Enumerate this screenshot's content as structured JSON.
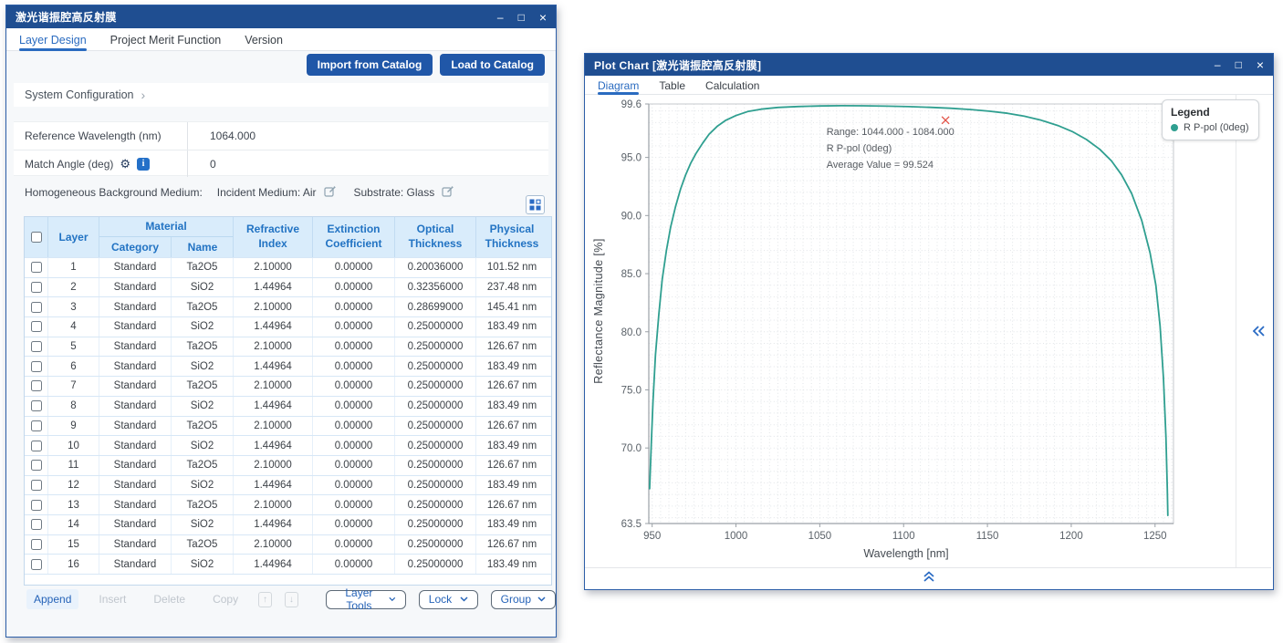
{
  "colors": {
    "titlebar": "#1f4e91",
    "accent": "#2a6bc0",
    "button_blue": "#2057a8",
    "table_header_bg": "#d9ecfb",
    "table_header_text": "#2273c3",
    "curve": "#2f9f90",
    "marker_red": "#e25045"
  },
  "left_window": {
    "title": "激光谐振腔高反射膜",
    "controls": {
      "minimize": "–",
      "maximize": "□",
      "close": "×"
    },
    "tabs": [
      {
        "label": "Layer Design",
        "active": true
      },
      {
        "label": "Project Merit Function",
        "active": false
      },
      {
        "label": "Version",
        "active": false
      }
    ],
    "buttons": {
      "import": "Import from Catalog",
      "load": "Load to Catalog"
    },
    "system_configuration": {
      "label": "System Configuration",
      "chevron": "›"
    },
    "config": {
      "reference_wavelength_label": "Reference Wavelength (nm)",
      "reference_wavelength_value": "1064.000",
      "match_angle_label": "Match Angle (deg)",
      "match_angle_value": "0",
      "info_glyph": "i",
      "gear_glyph": "⚙"
    },
    "medium_line": {
      "prefix": "Homogeneous Background Medium:",
      "incident_label": "Incident Medium: Air",
      "substrate_label": "Substrate: Glass"
    },
    "table": {
      "headers": {
        "layer": "Layer",
        "material": "Material",
        "category": "Category",
        "name": "Name",
        "refractive_l1": "Refractive",
        "refractive_l2": "Index",
        "extinction_l1": "Extinction",
        "extinction_l2": "Coefficient",
        "optical_l1": "Optical",
        "optical_l2": "Thickness",
        "physical_l1": "Physical",
        "physical_l2": "Thickness"
      },
      "rows": [
        {
          "layer": "1",
          "category": "Standard",
          "name": "Ta2O5",
          "n": "2.10000",
          "k": "0.00000",
          "ot": "0.20036000",
          "pt": "101.52 nm"
        },
        {
          "layer": "2",
          "category": "Standard",
          "name": "SiO2",
          "n": "1.44964",
          "k": "0.00000",
          "ot": "0.32356000",
          "pt": "237.48 nm"
        },
        {
          "layer": "3",
          "category": "Standard",
          "name": "Ta2O5",
          "n": "2.10000",
          "k": "0.00000",
          "ot": "0.28699000",
          "pt": "145.41 nm"
        },
        {
          "layer": "4",
          "category": "Standard",
          "name": "SiO2",
          "n": "1.44964",
          "k": "0.00000",
          "ot": "0.25000000",
          "pt": "183.49 nm"
        },
        {
          "layer": "5",
          "category": "Standard",
          "name": "Ta2O5",
          "n": "2.10000",
          "k": "0.00000",
          "ot": "0.25000000",
          "pt": "126.67 nm"
        },
        {
          "layer": "6",
          "category": "Standard",
          "name": "SiO2",
          "n": "1.44964",
          "k": "0.00000",
          "ot": "0.25000000",
          "pt": "183.49 nm"
        },
        {
          "layer": "7",
          "category": "Standard",
          "name": "Ta2O5",
          "n": "2.10000",
          "k": "0.00000",
          "ot": "0.25000000",
          "pt": "126.67 nm"
        },
        {
          "layer": "8",
          "category": "Standard",
          "name": "SiO2",
          "n": "1.44964",
          "k": "0.00000",
          "ot": "0.25000000",
          "pt": "183.49 nm"
        },
        {
          "layer": "9",
          "category": "Standard",
          "name": "Ta2O5",
          "n": "2.10000",
          "k": "0.00000",
          "ot": "0.25000000",
          "pt": "126.67 nm"
        },
        {
          "layer": "10",
          "category": "Standard",
          "name": "SiO2",
          "n": "1.44964",
          "k": "0.00000",
          "ot": "0.25000000",
          "pt": "183.49 nm"
        },
        {
          "layer": "11",
          "category": "Standard",
          "name": "Ta2O5",
          "n": "2.10000",
          "k": "0.00000",
          "ot": "0.25000000",
          "pt": "126.67 nm"
        },
        {
          "layer": "12",
          "category": "Standard",
          "name": "SiO2",
          "n": "1.44964",
          "k": "0.00000",
          "ot": "0.25000000",
          "pt": "183.49 nm"
        },
        {
          "layer": "13",
          "category": "Standard",
          "name": "Ta2O5",
          "n": "2.10000",
          "k": "0.00000",
          "ot": "0.25000000",
          "pt": "126.67 nm"
        },
        {
          "layer": "14",
          "category": "Standard",
          "name": "SiO2",
          "n": "1.44964",
          "k": "0.00000",
          "ot": "0.25000000",
          "pt": "183.49 nm"
        },
        {
          "layer": "15",
          "category": "Standard",
          "name": "Ta2O5",
          "n": "2.10000",
          "k": "0.00000",
          "ot": "0.25000000",
          "pt": "126.67 nm"
        },
        {
          "layer": "16",
          "category": "Standard",
          "name": "SiO2",
          "n": "1.44964",
          "k": "0.00000",
          "ot": "0.25000000",
          "pt": "183.49 nm"
        }
      ]
    },
    "toolbar": {
      "append": "Append",
      "insert": "Insert",
      "delete": "Delete",
      "copy": "Copy",
      "move_up": "↑",
      "move_down": "↓",
      "layer_tools": "Layer Tools",
      "lock": "Lock",
      "group": "Group"
    }
  },
  "right_window": {
    "title": "Plot Chart [激光谐振腔高反射膜]",
    "controls": {
      "minimize": "–",
      "maximize": "□",
      "close": "×"
    },
    "tabs": [
      {
        "label": "Diagram",
        "active": true
      },
      {
        "label": "Table",
        "active": false
      },
      {
        "label": "Calculation",
        "active": false
      }
    ],
    "legend": {
      "title": "Legend",
      "entries": [
        {
          "label": "R P-pol (0deg)",
          "color": "#2f9f90"
        }
      ]
    }
  },
  "chart_data": {
    "type": "line",
    "xlabel": "Wavelength [nm]",
    "ylabel": "Reflectance Magnitude [%]",
    "xlim": [
      948,
      1261
    ],
    "ylim": [
      63.5,
      99.6
    ],
    "x_ticks": [
      "950",
      "1000",
      "1050",
      "1100",
      "1150",
      "1200",
      "1250"
    ],
    "y_ticks": [
      "99.6",
      "95.0",
      "90.0",
      "85.0",
      "80.0",
      "75.0",
      "70.0",
      "63.5"
    ],
    "grid": true,
    "legend_position": "top-right",
    "series": [
      {
        "name": "R P-pol (0deg)",
        "color": "#2f9f90",
        "points": [
          [
            948.5,
            66.5
          ],
          [
            949.5,
            70.5
          ],
          [
            950.5,
            74.0
          ],
          [
            952,
            78.0
          ],
          [
            954,
            81.5
          ],
          [
            956,
            84.5
          ],
          [
            958.5,
            87.0
          ],
          [
            961,
            89.0
          ],
          [
            964,
            90.8
          ],
          [
            967,
            92.3
          ],
          [
            970,
            93.5
          ],
          [
            973,
            94.5
          ],
          [
            976,
            95.3
          ],
          [
            980,
            96.2
          ],
          [
            984,
            97.0
          ],
          [
            989,
            97.7
          ],
          [
            994,
            98.2
          ],
          [
            1000,
            98.6
          ],
          [
            1007,
            98.95
          ],
          [
            1015,
            99.15
          ],
          [
            1025,
            99.3
          ],
          [
            1037,
            99.38
          ],
          [
            1050,
            99.43
          ],
          [
            1063,
            99.45
          ],
          [
            1076,
            99.44
          ],
          [
            1090,
            99.41
          ],
          [
            1103,
            99.37
          ],
          [
            1116,
            99.31
          ],
          [
            1128,
            99.23
          ],
          [
            1140,
            99.12
          ],
          [
            1151,
            98.98
          ],
          [
            1162,
            98.8
          ],
          [
            1172,
            98.55
          ],
          [
            1182,
            98.2
          ],
          [
            1192,
            97.75
          ],
          [
            1201,
            97.2
          ],
          [
            1209,
            96.55
          ],
          [
            1217,
            95.7
          ],
          [
            1224,
            94.7
          ],
          [
            1230,
            93.5
          ],
          [
            1236,
            91.9
          ],
          [
            1242,
            89.6
          ],
          [
            1247,
            86.8
          ],
          [
            1250.5,
            84.0
          ],
          [
            1253,
            80.5
          ],
          [
            1255,
            76.0
          ],
          [
            1256.5,
            71.0
          ],
          [
            1257.3,
            66.5
          ],
          [
            1257.6,
            64.2
          ]
        ]
      }
    ],
    "annotation": {
      "anchor_x": 1054,
      "anchor_y": 96.95,
      "lines": [
        "Range: 1044.000 - 1084.000",
        "R P-pol (0deg)",
        "Average Value = 99.524"
      ],
      "marker": {
        "x": 1125,
        "y": 98.2,
        "color": "#e25045"
      }
    }
  }
}
